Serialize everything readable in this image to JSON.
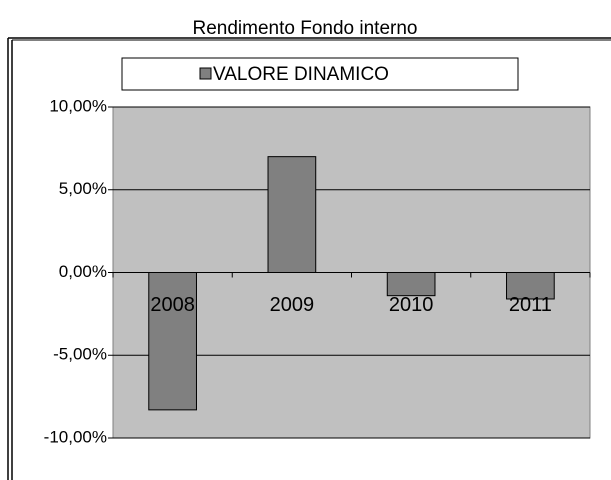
{
  "chart_data": {
    "type": "bar",
    "title": "Rendimento Fondo interno",
    "categories": [
      "2008",
      "2009",
      "2010",
      "2011"
    ],
    "series": [
      {
        "name": "VALORE DINAMICO",
        "color": "#808080",
        "values": [
          -8.3,
          7.0,
          -1.4,
          -1.6
        ]
      }
    ],
    "ylim": [
      -10,
      10
    ],
    "yticks": [
      {
        "value": -10,
        "label": "-10,00%"
      },
      {
        "value": -5,
        "label": "-5,00%"
      },
      {
        "value": 0,
        "label": "0,00%"
      },
      {
        "value": 5,
        "label": "5,00%"
      },
      {
        "value": 10,
        "label": "10,00%"
      }
    ],
    "grid": true,
    "plot_background": "#c0c0c0"
  }
}
